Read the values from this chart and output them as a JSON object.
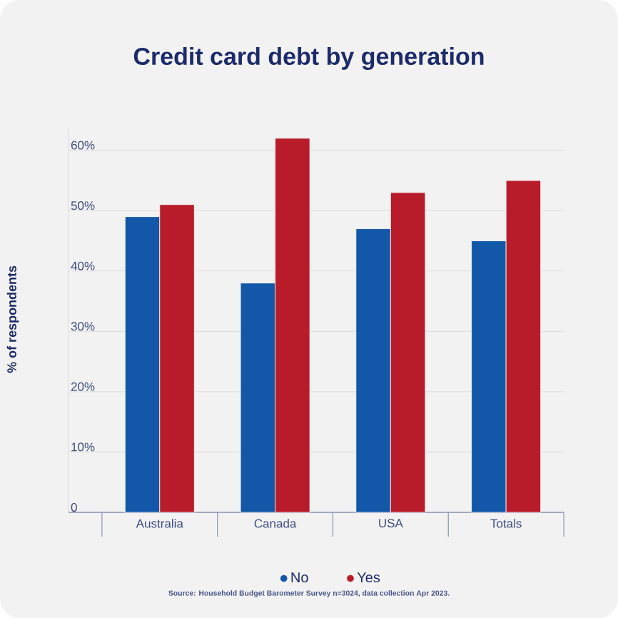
{
  "chart_data": {
    "type": "bar",
    "title": "Credit card debt by generation",
    "ylabel": "% of respondents",
    "categories": [
      "Australia",
      "Canada",
      "USA",
      "Totals"
    ],
    "series": [
      {
        "name": "No",
        "color": "#1257a8",
        "values": [
          49,
          38,
          47,
          45
        ]
      },
      {
        "name": "Yes",
        "color": "#b81c2a",
        "values": [
          51,
          62,
          53,
          55
        ]
      }
    ],
    "ylim": [
      0,
      64
    ],
    "yticks": [
      0,
      {
        "value": 10,
        "label": "10%"
      },
      {
        "value": 20,
        "label": "20%"
      },
      {
        "value": 30,
        "label": "30%"
      },
      {
        "value": 40,
        "label": "40%"
      },
      {
        "value": 50,
        "label": "50%"
      },
      {
        "value": 60,
        "label": "60%"
      }
    ],
    "grid": "y",
    "legend": "bottom",
    "marker": "circle",
    "annotations": [
      "Source: Household Budget Barometer Survey n=3024, data collection Apr 2023."
    ]
  }
}
